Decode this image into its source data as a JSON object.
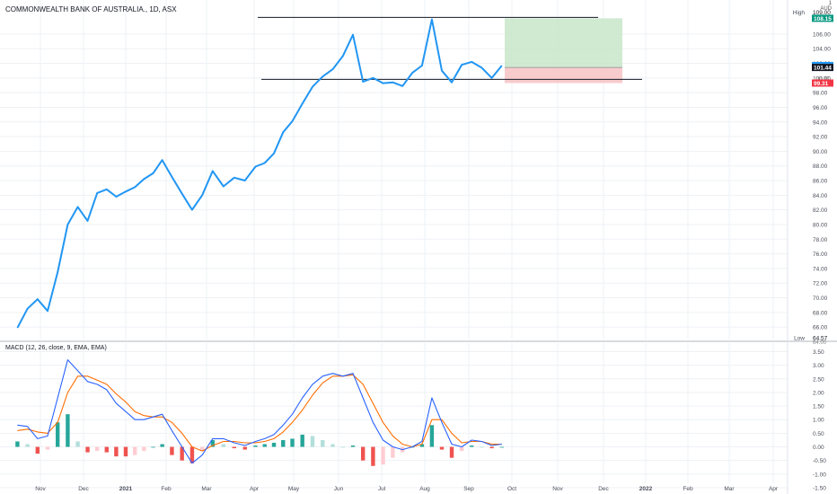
{
  "header": {
    "title": "COMMONWEALTH BANK OF AUSTRALIA., 1D, ASX",
    "currency_top": "1",
    "currency": "AUD"
  },
  "chart_data": [
    {
      "type": "line",
      "title": "COMMONWEALTH BANK OF AUSTRALIA., 1D, ASX",
      "xlabel": "",
      "ylabel": "",
      "ylim": [
        64.3,
        109.3
      ],
      "x_ticks": [
        "Nov",
        "Dec",
        "2021",
        "Feb",
        "Mar",
        "Apr",
        "May",
        "Jun",
        "Jul",
        "Aug",
        "Sep",
        "Oct",
        "Nov",
        "Dec",
        "2022",
        "Feb",
        "Mar",
        "Apr"
      ],
      "y_ticks": [
        66,
        68,
        70,
        72,
        74,
        76,
        78,
        80,
        82,
        84,
        86,
        88,
        90,
        92,
        94,
        96,
        98,
        100,
        102,
        104,
        106
      ],
      "series": [
        {
          "x": [
            "2020-10-16",
            "2020-10-23",
            "2020-10-30",
            "2020-11-06",
            "2020-11-13",
            "2020-11-20",
            "2020-11-27",
            "2020-12-04",
            "2020-12-11",
            "2020-12-18",
            "2020-12-25",
            "2021-01-01",
            "2021-01-08",
            "2021-01-15",
            "2021-01-22",
            "2021-01-29",
            "2021-02-05",
            "2021-02-12",
            "2021-02-19",
            "2021-02-26",
            "2021-03-05",
            "2021-03-12",
            "2021-03-19",
            "2021-03-26",
            "2021-04-02",
            "2021-04-09",
            "2021-04-16",
            "2021-04-23",
            "2021-04-30",
            "2021-05-07",
            "2021-05-14",
            "2021-05-21",
            "2021-05-28",
            "2021-06-04",
            "2021-06-11",
            "2021-06-18",
            "2021-06-25",
            "2021-07-02",
            "2021-07-09",
            "2021-07-16",
            "2021-07-23",
            "2021-07-30",
            "2021-08-06",
            "2021-08-13",
            "2021-08-20",
            "2021-08-27",
            "2021-09-03",
            "2021-09-10",
            "2021-09-17",
            "2021-09-24"
          ],
          "values": [
            65.9,
            68.5,
            69.8,
            68.2,
            73.5,
            80.0,
            82.4,
            80.5,
            84.3,
            84.8,
            83.8,
            84.5,
            85.1,
            86.2,
            87.0,
            88.8,
            86.5,
            84.2,
            82.0,
            84.0,
            87.3,
            85.2,
            86.4,
            86.0,
            87.9,
            88.4,
            89.7,
            92.6,
            94.1,
            96.5,
            98.8,
            100.2,
            101.2,
            103.0,
            105.9,
            99.5,
            100.0,
            99.3,
            99.4,
            98.9,
            100.7,
            101.7,
            108.0,
            101.0,
            99.4,
            101.8,
            102.2,
            101.4,
            100.0,
            101.7
          ]
        }
      ],
      "annotations": {
        "resistance_line": 108.15,
        "support_line": 99.81,
        "position": {
          "entry": 101.44,
          "target": 108.15,
          "stop": 99.31
        }
      },
      "price_labels": [
        {
          "text": "High",
          "value": "109.00",
          "kind": "high"
        },
        {
          "text": "",
          "value": "108.15",
          "kind": "target",
          "color": "#089981"
        },
        {
          "text": "",
          "value": "101.70",
          "kind": "last",
          "color": "#2196f3"
        },
        {
          "text": "",
          "value": "101.44",
          "kind": "entry",
          "color": "#131722"
        },
        {
          "text": "",
          "value": "100.00",
          "kind": "round",
          "color": "#888888"
        },
        {
          "text": "",
          "value": "99.31",
          "kind": "stop",
          "color": "#f23645"
        },
        {
          "text": "Low",
          "value": "64.57",
          "kind": "low"
        },
        {
          "text": "",
          "value": "64.00",
          "kind": "under",
          "color": "#888888"
        }
      ],
      "colors": {
        "price": "#2196f3",
        "reward": "#c8e6c9",
        "risk": "#f7c5c8"
      }
    },
    {
      "type": "line",
      "title": "MACD (12, 26, close, 9, EMA, EMA)",
      "ylim": [
        -1.6,
        3.55
      ],
      "y_ticks": [
        3.5,
        3.0,
        2.5,
        2.0,
        1.5,
        1.0,
        0.5,
        0.0,
        -0.5,
        -1.0,
        -1.5
      ],
      "series": [
        {
          "name": "MACD",
          "color": "#2962ff",
          "values": [
            0.8,
            0.75,
            0.3,
            0.4,
            1.8,
            3.2,
            2.8,
            2.4,
            2.3,
            2.1,
            1.6,
            1.3,
            1.0,
            1.0,
            1.1,
            1.2,
            0.6,
            0.0,
            -0.6,
            -0.3,
            0.3,
            0.3,
            0.15,
            0.05,
            0.2,
            0.3,
            0.45,
            0.8,
            1.2,
            1.8,
            2.3,
            2.6,
            2.7,
            2.6,
            2.7,
            1.8,
            0.9,
            0.25,
            0.0,
            -0.1,
            0.0,
            0.2,
            1.8,
            0.9,
            0.1,
            0.0,
            0.25,
            0.2,
            0.05,
            0.1
          ]
        },
        {
          "name": "Signal",
          "color": "#ff6d00",
          "values": [
            0.6,
            0.65,
            0.55,
            0.5,
            0.9,
            2.0,
            2.6,
            2.6,
            2.45,
            2.3,
            1.95,
            1.65,
            1.3,
            1.15,
            1.1,
            1.1,
            0.9,
            0.5,
            0.0,
            -0.15,
            0.05,
            0.2,
            0.2,
            0.15,
            0.15,
            0.2,
            0.3,
            0.55,
            0.9,
            1.35,
            1.9,
            2.35,
            2.6,
            2.6,
            2.65,
            2.3,
            1.6,
            0.9,
            0.4,
            0.1,
            0.0,
            0.1,
            1.0,
            1.0,
            0.5,
            0.15,
            0.2,
            0.2,
            0.1,
            0.1
          ]
        },
        {
          "name": "Histogram",
          "values": [
            0.2,
            0.1,
            -0.25,
            -0.1,
            0.9,
            1.2,
            0.2,
            -0.2,
            -0.15,
            -0.2,
            -0.35,
            -0.35,
            -0.3,
            -0.15,
            0.0,
            0.1,
            -0.3,
            -0.5,
            -0.6,
            -0.15,
            0.25,
            0.1,
            -0.05,
            -0.1,
            0.05,
            0.1,
            0.15,
            0.25,
            0.3,
            0.45,
            0.4,
            0.25,
            0.1,
            0.0,
            0.05,
            -0.5,
            -0.7,
            -0.65,
            -0.4,
            -0.2,
            0.0,
            0.1,
            0.8,
            -0.1,
            -0.4,
            -0.15,
            0.05,
            0.0,
            -0.05,
            0.0
          ]
        }
      ]
    }
  ]
}
